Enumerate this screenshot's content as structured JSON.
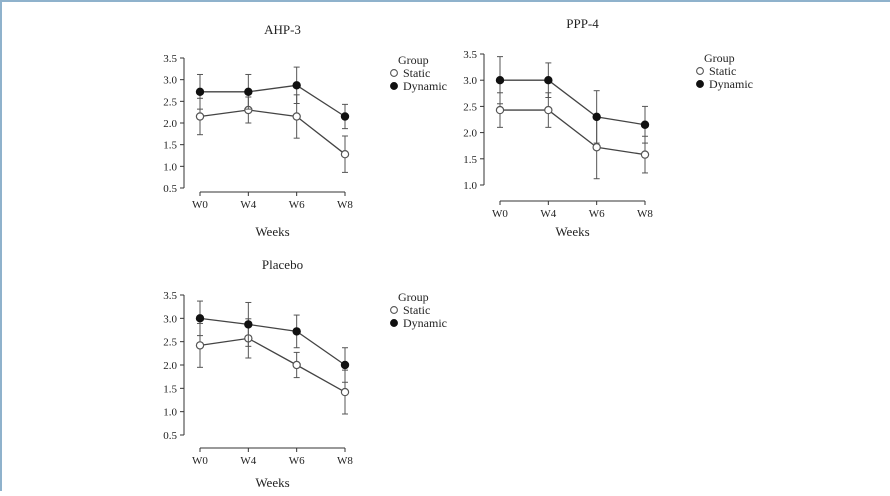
{
  "chart_data": [
    {
      "type": "line",
      "title": "AHP-3",
      "xlabel": "Weeks",
      "ylabel": "",
      "categories": [
        "W0",
        "W4",
        "W6",
        "W8"
      ],
      "ylim": [
        0.5,
        3.5
      ],
      "yticks": [
        "0.5",
        "1.0",
        "1.5",
        "2.0",
        "2.5",
        "3.0",
        "3.5"
      ],
      "legend": {
        "title": "Group",
        "position": "right"
      },
      "series": [
        {
          "name": "Static",
          "marker": "open",
          "values": [
            2.15,
            2.3,
            2.15,
            1.28
          ],
          "errors": [
            0.42,
            0.3,
            0.5,
            0.42
          ]
        },
        {
          "name": "Dynamic",
          "marker": "filled",
          "values": [
            2.72,
            2.72,
            2.87,
            2.15
          ],
          "errors": [
            0.4,
            0.4,
            0.42,
            0.28
          ]
        }
      ]
    },
    {
      "type": "line",
      "title": "PPP-4",
      "xlabel": "Weeks",
      "ylabel": "",
      "categories": [
        "W0",
        "W4",
        "W6",
        "W8"
      ],
      "ylim": [
        1.0,
        3.5
      ],
      "yticks": [
        "1.0",
        "1.5",
        "2.0",
        "2.5",
        "3.0",
        "3.5"
      ],
      "legend": {
        "title": "Group",
        "position": "right"
      },
      "series": [
        {
          "name": "Static",
          "marker": "open",
          "values": [
            2.43,
            2.43,
            1.72,
            1.58
          ],
          "errors": [
            0.33,
            0.33,
            0.6,
            0.35
          ]
        },
        {
          "name": "Dynamic",
          "marker": "filled",
          "values": [
            3.0,
            3.0,
            2.3,
            2.15
          ],
          "errors": [
            0.45,
            0.33,
            0.5,
            0.35
          ]
        }
      ]
    },
    {
      "type": "line",
      "title": "Placebo",
      "xlabel": "Weeks",
      "ylabel": "",
      "categories": [
        "W0",
        "W4",
        "W6",
        "W8"
      ],
      "ylim": [
        0.5,
        3.5
      ],
      "yticks": [
        "0.5",
        "1.0",
        "1.5",
        "2.0",
        "2.5",
        "3.0",
        "3.5"
      ],
      "legend": {
        "title": "Group",
        "position": "right"
      },
      "series": [
        {
          "name": "Static",
          "marker": "open",
          "values": [
            2.42,
            2.57,
            2.0,
            1.42
          ],
          "errors": [
            0.47,
            0.42,
            0.27,
            0.47
          ]
        },
        {
          "name": "Dynamic",
          "marker": "filled",
          "values": [
            3.0,
            2.87,
            2.72,
            2.0
          ],
          "errors": [
            0.37,
            0.47,
            0.35,
            0.37
          ]
        }
      ]
    }
  ],
  "colors": {
    "frame": "#8fb2cc",
    "line": "#444444",
    "marker_fill": "#111111"
  }
}
